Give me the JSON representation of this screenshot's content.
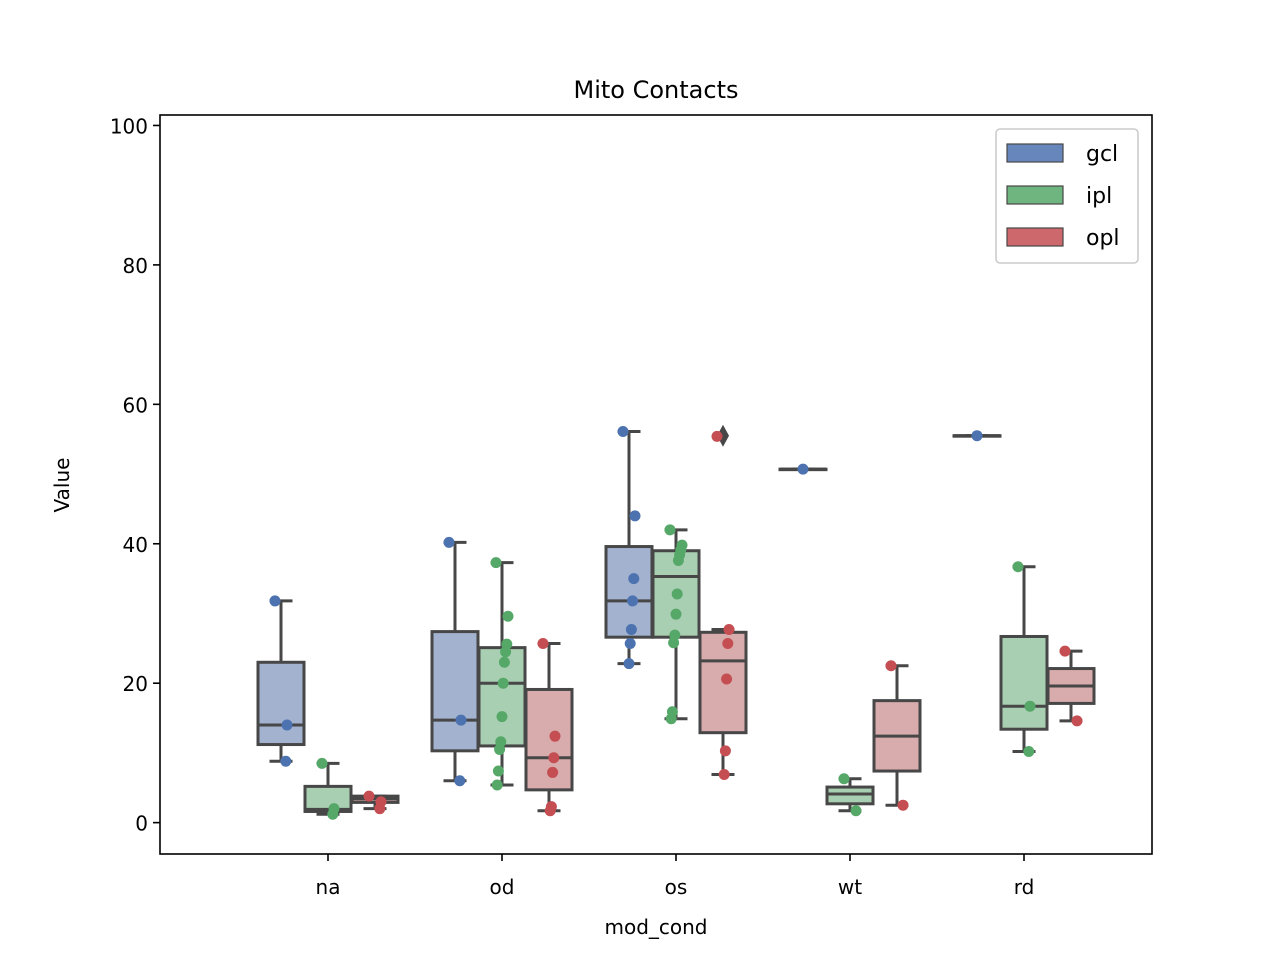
{
  "chart_data": {
    "type": "box",
    "title": "Mito Contacts",
    "xlabel": "mod_cond",
    "ylabel": "Value",
    "ylim": [
      -4.5,
      101.5
    ],
    "yticks": [
      0,
      20,
      40,
      60,
      80,
      100
    ],
    "categories": [
      "na",
      "od",
      "os",
      "wt",
      "rd"
    ],
    "legend_position": "upper right",
    "series": [
      {
        "name": "gcl",
        "color": "#4c72b0",
        "box_color": "#a2b2cf",
        "boxes": [
          {
            "category": "na",
            "whislo": 8.8,
            "q1": 11.2,
            "med": 14.0,
            "q3": 23.0,
            "whishi": 31.8,
            "fliers": []
          },
          {
            "category": "od",
            "whislo": 6.0,
            "q1": 10.3,
            "med": 14.7,
            "q3": 27.4,
            "whishi": 40.2,
            "fliers": []
          },
          {
            "category": "os",
            "whislo": 22.8,
            "q1": 26.6,
            "med": 31.8,
            "q3": 39.6,
            "whishi": 56.1,
            "fliers": []
          },
          {
            "category": "wt",
            "whislo": 50.7,
            "q1": 50.7,
            "med": 50.7,
            "q3": 50.7,
            "whishi": 50.7,
            "fliers": []
          },
          {
            "category": "rd",
            "whislo": 55.5,
            "q1": 55.5,
            "med": 55.5,
            "q3": 55.5,
            "whishi": 55.5,
            "fliers": []
          }
        ],
        "points": [
          {
            "category": "na",
            "values": [
              31.8,
              14.0,
              8.8
            ]
          },
          {
            "category": "od",
            "values": [
              40.2,
              14.7,
              6.0
            ]
          },
          {
            "category": "os",
            "values": [
              56.1,
              44.0,
              35.0,
              31.8,
              27.7,
              25.7,
              22.8
            ]
          },
          {
            "category": "wt",
            "values": [
              50.7
            ]
          },
          {
            "category": "rd",
            "values": [
              55.5
            ]
          }
        ]
      },
      {
        "name": "ipl",
        "color": "#55a868",
        "box_color": "#a9cfb2",
        "boxes": [
          {
            "category": "na",
            "whislo": 1.2,
            "q1": 1.6,
            "med": 1.9,
            "q3": 5.2,
            "whishi": 8.5,
            "fliers": []
          },
          {
            "category": "od",
            "whislo": 5.4,
            "q1": 11.0,
            "med": 20.0,
            "q3": 25.1,
            "whishi": 37.3,
            "fliers": []
          },
          {
            "category": "os",
            "whislo": 14.9,
            "q1": 26.6,
            "med": 35.3,
            "q3": 39.0,
            "whishi": 42.0,
            "fliers": []
          },
          {
            "category": "wt",
            "whislo": 1.7,
            "q1": 2.7,
            "med": 4.1,
            "q3": 5.1,
            "whishi": 6.3,
            "fliers": []
          },
          {
            "category": "rd",
            "whislo": 10.2,
            "q1": 13.4,
            "med": 16.7,
            "q3": 26.7,
            "whishi": 36.7,
            "fliers": []
          }
        ],
        "points": [
          {
            "category": "na",
            "values": [
              8.5,
              2.0,
              1.2
            ]
          },
          {
            "category": "od",
            "values": [
              37.3,
              29.6,
              25.6,
              24.5,
              23.0,
              20.0,
              15.2,
              11.6,
              10.5,
              7.4,
              5.4
            ]
          },
          {
            "category": "os",
            "values": [
              42.0,
              39.8,
              39.1,
              38.4,
              37.6,
              32.8,
              29.9,
              26.9,
              25.8,
              15.9,
              14.9
            ]
          },
          {
            "category": "wt",
            "values": [
              6.3,
              1.7
            ]
          },
          {
            "category": "rd",
            "values": [
              36.7,
              16.7,
              10.2
            ]
          }
        ]
      },
      {
        "name": "opl",
        "color": "#c44e52",
        "box_color": "#d8abac",
        "boxes": [
          {
            "category": "na",
            "whislo": 2.0,
            "q1": 2.9,
            "med": 3.4,
            "q3": 3.8,
            "whishi": 3.8,
            "fliers": []
          },
          {
            "category": "od",
            "whislo": 1.7,
            "q1": 4.7,
            "med": 9.3,
            "q3": 19.1,
            "whishi": 25.7,
            "fliers": []
          },
          {
            "category": "os",
            "whislo": 6.9,
            "q1": 12.9,
            "med": 23.2,
            "q3": 27.3,
            "whishi": 27.7,
            "fliers": [
              55.5
            ]
          },
          {
            "category": "wt",
            "whislo": 2.5,
            "q1": 7.4,
            "med": 12.4,
            "q3": 17.5,
            "whishi": 22.5,
            "fliers": []
          },
          {
            "category": "rd",
            "whislo": 14.6,
            "q1": 17.1,
            "med": 19.6,
            "q3": 22.1,
            "whishi": 24.6,
            "fliers": []
          }
        ],
        "points": [
          {
            "category": "na",
            "values": [
              3.8,
              3.0,
              2.0
            ]
          },
          {
            "category": "od",
            "values": [
              25.7,
              12.4,
              9.3,
              7.2,
              2.3,
              1.7
            ]
          },
          {
            "category": "os",
            "values": [
              55.4,
              27.7,
              25.7,
              20.6,
              10.3,
              6.9
            ]
          },
          {
            "category": "wt",
            "values": [
              22.5,
              2.5
            ]
          },
          {
            "category": "rd",
            "values": [
              24.6,
              14.6
            ]
          }
        ]
      }
    ]
  }
}
